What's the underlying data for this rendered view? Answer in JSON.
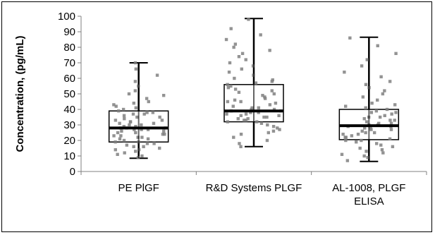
{
  "chart_data": {
    "type": "box",
    "title": "",
    "xlabel": "",
    "ylabel": "Concentration, (pg/mL)",
    "ylim": [
      0,
      100
    ],
    "yticks": [
      0,
      10,
      20,
      30,
      40,
      50,
      60,
      70,
      80,
      90,
      100
    ],
    "grid": false,
    "legend": "none",
    "colors": {
      "points": "#808080",
      "box": "#000000",
      "axis": "#808080"
    },
    "categories": [
      "PE PlGF",
      "R&D Systems PLGF",
      [
        "AL-1008, PLGF",
        "ELISA"
      ]
    ],
    "boxes": [
      {
        "category": "PE PlGF",
        "min": 8.5,
        "q1": 19,
        "median": 28,
        "q3": 39,
        "max": 70
      },
      {
        "category": "R&D Systems PLGF",
        "min": 16,
        "q1": 32,
        "median": 39,
        "q3": 56,
        "max": 98.5
      },
      {
        "category": "AL-1008, PLGF ELISA",
        "min": 6.5,
        "q1": 20.5,
        "median": 29.5,
        "q3": 40,
        "max": 86.5
      }
    ],
    "points": [
      [
        9,
        10,
        11,
        12,
        13,
        14,
        14,
        15,
        16,
        16,
        17,
        18,
        18,
        19,
        19,
        20,
        21,
        21,
        22,
        22,
        23,
        23,
        24,
        24,
        25,
        25,
        26,
        26,
        27,
        27,
        27,
        28,
        28,
        28,
        29,
        29,
        30,
        30,
        31,
        31,
        32,
        32,
        33,
        33,
        34,
        35,
        35,
        36,
        37,
        37,
        38,
        38,
        39,
        40,
        41,
        42,
        43,
        44,
        45,
        47,
        49,
        50,
        52,
        55,
        58,
        62,
        66,
        70
      ],
      [
        16,
        18,
        20,
        22,
        24,
        25,
        26,
        27,
        28,
        29,
        30,
        31,
        32,
        32,
        33,
        33,
        34,
        34,
        35,
        35,
        36,
        36,
        37,
        37,
        38,
        38,
        39,
        39,
        40,
        40,
        41,
        41,
        42,
        43,
        44,
        45,
        45,
        46,
        47,
        48,
        49,
        50,
        51,
        52,
        53,
        54,
        55,
        56,
        57,
        58,
        59,
        60,
        62,
        64,
        66,
        68,
        70,
        72,
        74,
        76,
        78,
        80,
        82,
        85,
        88,
        92,
        98
      ],
      [
        7,
        9,
        10,
        11,
        12,
        13,
        14,
        15,
        16,
        17,
        18,
        19,
        20,
        20,
        21,
        22,
        22,
        23,
        24,
        24,
        25,
        25,
        26,
        27,
        27,
        28,
        28,
        29,
        29,
        30,
        30,
        31,
        31,
        32,
        33,
        33,
        34,
        35,
        35,
        36,
        37,
        38,
        38,
        39,
        40,
        41,
        42,
        43,
        44,
        46,
        48,
        50,
        52,
        54,
        56,
        58,
        61,
        64,
        68,
        72,
        76,
        81,
        86
      ]
    ]
  }
}
